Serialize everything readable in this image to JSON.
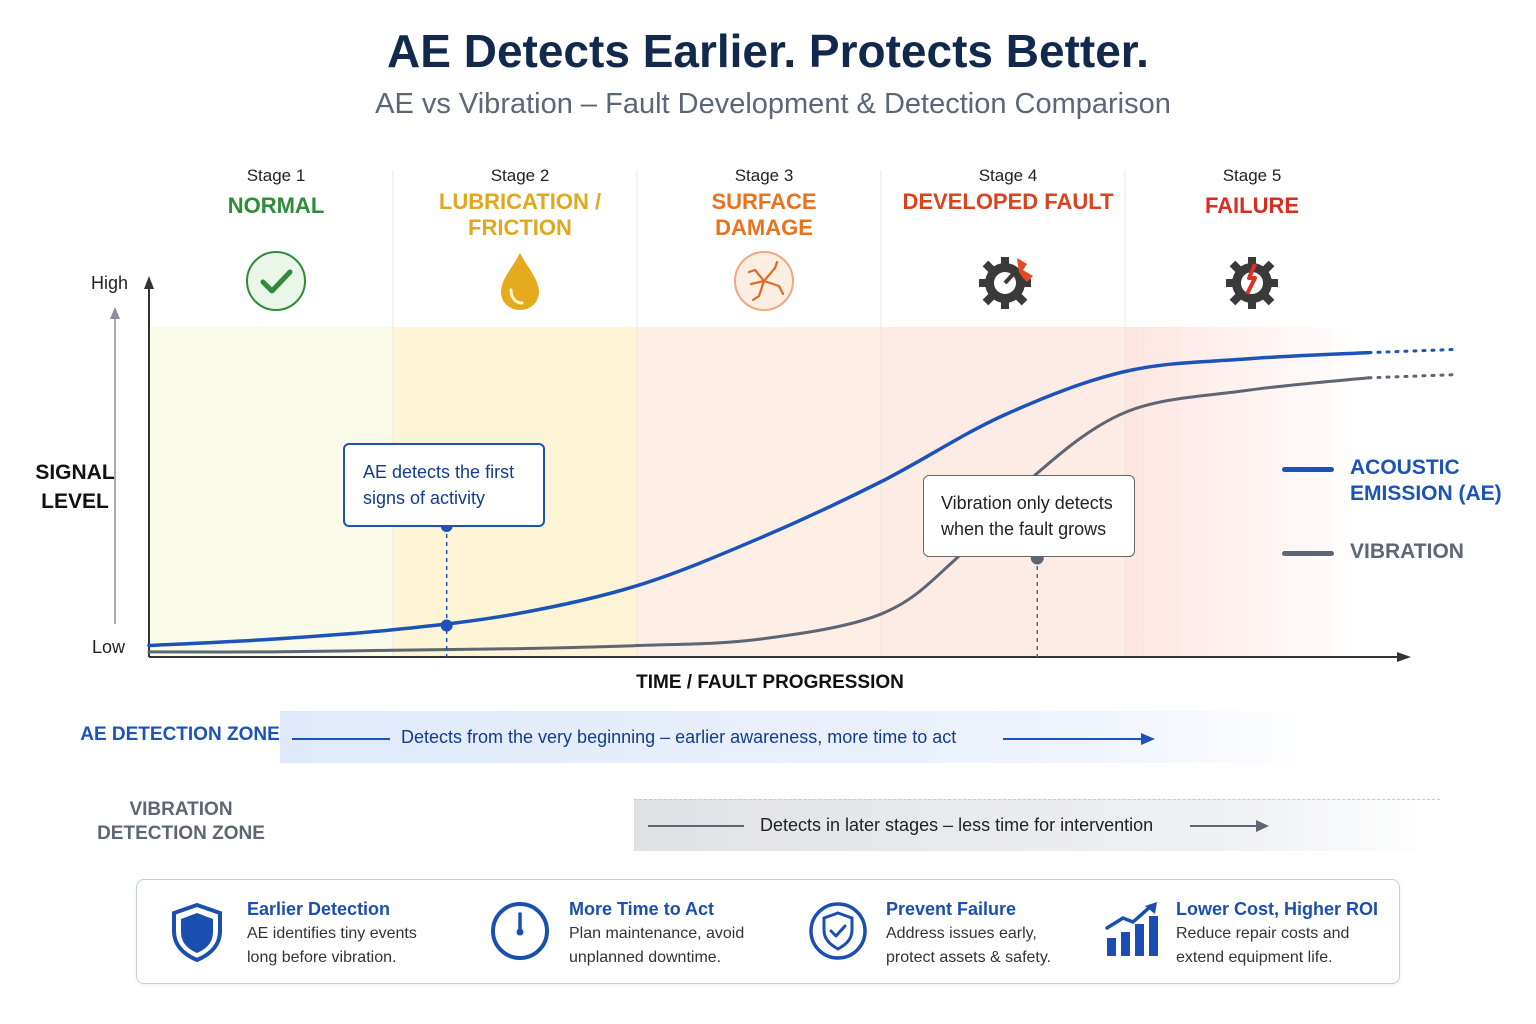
{
  "header": {
    "title": "AE Detects Earlier. Protects Better.",
    "subtitle": "AE vs Vibration – Fault Development & Detection Comparison"
  },
  "stages": [
    {
      "number": "Stage 1",
      "name": [
        "NORMAL"
      ],
      "color": "#2e8b3a",
      "icon": "check-circle-icon"
    },
    {
      "number": "Stage 2",
      "name": [
        "LUBRICATION /",
        "FRICTION"
      ],
      "color": "#e0a81e",
      "icon": "oil-drop-icon"
    },
    {
      "number": "Stage 3",
      "name": [
        "SURFACE",
        "DAMAGE"
      ],
      "color": "#e8731e",
      "icon": "cracked-surface-icon"
    },
    {
      "number": "Stage 4",
      "name": [
        "DEVELOPED FAULT"
      ],
      "color": "#d9441e",
      "icon": "gear-fault-icon"
    },
    {
      "number": "Stage 5",
      "name": [
        "FAILURE"
      ],
      "color": "#d82d22",
      "icon": "broken-gear-icon"
    }
  ],
  "callouts": {
    "ae": [
      "AE detects the first",
      "signs of activity"
    ],
    "vibration": [
      "Vibration only detects",
      "when the fault grows"
    ]
  },
  "zones": {
    "ae": {
      "label": [
        "AE DETECTION ZONE"
      ],
      "text": "Detects from the very beginning – earlier awareness, more time to act",
      "color": "#1b53b8"
    },
    "vibration": {
      "label": [
        "VIBRATION",
        "DETECTION ZONE"
      ],
      "text": "Detects in later stages – less time for intervention",
      "color": "#5f6673"
    }
  },
  "benefits": [
    {
      "title": "Earlier Detection",
      "text": [
        "AE identifies tiny events",
        "long before vibration."
      ],
      "icon": "shield-icon"
    },
    {
      "title": "More Time to Act",
      "text": [
        "Plan maintenance, avoid",
        "unplanned downtime."
      ],
      "icon": "clock-icon"
    },
    {
      "title": "Prevent Failure",
      "text": [
        "Address issues early,",
        "protect assets & safety."
      ],
      "icon": "shield-check-icon"
    },
    {
      "title": "Lower Cost, Higher ROI",
      "text": [
        "Reduce repair costs and",
        "extend equipment life."
      ],
      "icon": "bar-chart-growth-icon"
    }
  ],
  "chart_data": {
    "type": "line",
    "title": "",
    "xlabel": "TIME / FAULT PROGRESSION",
    "ylabel": "SIGNAL LEVEL",
    "y_tick_labels": [
      "High",
      "Low"
    ],
    "xlim": [
      0,
      5
    ],
    "ylim": [
      0,
      1
    ],
    "grid": false,
    "legend_position": "right",
    "series": [
      {
        "name": "ACOUSTIC EMISSION (AE)",
        "color": "#1b53b8",
        "x": [
          0,
          0.5,
          1.0,
          1.5,
          2.0,
          2.5,
          3.0,
          3.5,
          4.0,
          4.5,
          5.0
        ],
        "y": [
          0.03,
          0.05,
          0.08,
          0.13,
          0.22,
          0.37,
          0.55,
          0.76,
          0.9,
          0.94,
          0.96
        ],
        "dashed_extension": {
          "x": [
            5.0,
            5.35
          ],
          "y": [
            0.96,
            0.97
          ]
        }
      },
      {
        "name": "VIBRATION",
        "color": "#5f6673",
        "x": [
          0,
          0.5,
          1.0,
          1.5,
          2.0,
          2.5,
          3.0,
          3.3,
          3.6,
          4.0,
          4.5,
          5.0
        ],
        "y": [
          0.01,
          0.01,
          0.015,
          0.02,
          0.03,
          0.05,
          0.13,
          0.3,
          0.55,
          0.77,
          0.84,
          0.88
        ],
        "dashed_extension": {
          "x": [
            5.0,
            5.35
          ],
          "y": [
            0.88,
            0.89
          ]
        }
      }
    ],
    "markers": [
      {
        "series": "ACOUSTIC EMISSION (AE)",
        "x": 1.22,
        "y": 0.1
      },
      {
        "series": "VIBRATION",
        "x": 3.62,
        "y": 0.27
      }
    ]
  }
}
